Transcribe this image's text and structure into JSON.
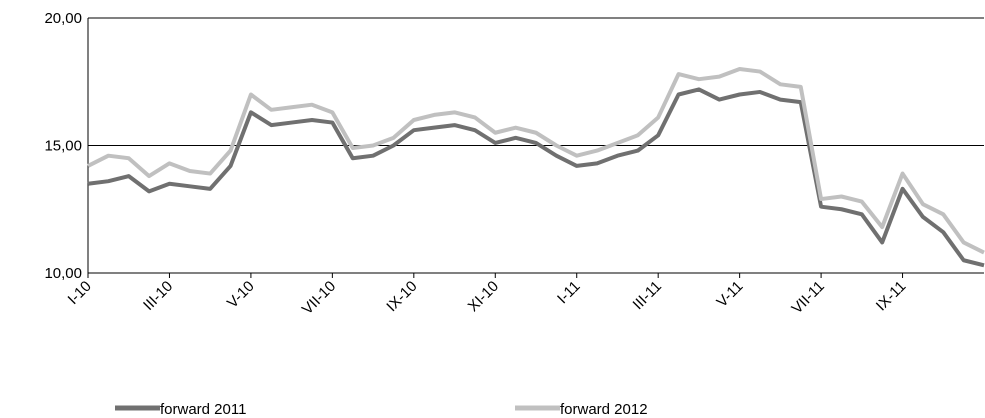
{
  "chart_data": {
    "type": "line",
    "categories": [
      "I-10",
      null,
      null,
      null,
      "III-10",
      null,
      null,
      null,
      "V-10",
      null,
      null,
      null,
      "VII-10",
      null,
      null,
      null,
      "IX-10",
      null,
      null,
      null,
      "XI-10",
      null,
      null,
      null,
      "I-11",
      null,
      null,
      null,
      "III-11",
      null,
      null,
      null,
      "V-11",
      null,
      null,
      null,
      "VII-11",
      null,
      null,
      null,
      "IX-11",
      null,
      null,
      null,
      null
    ],
    "series": [
      {
        "name": "forward 2011",
        "color": "#707070",
        "values": [
          13.5,
          13.6,
          13.8,
          13.2,
          13.5,
          13.4,
          13.3,
          14.2,
          16.3,
          15.8,
          15.9,
          16.0,
          15.9,
          14.5,
          14.6,
          15.0,
          15.6,
          15.7,
          15.8,
          15.6,
          15.1,
          15.3,
          15.1,
          14.6,
          14.2,
          14.3,
          14.6,
          14.8,
          15.4,
          17.0,
          17.2,
          16.8,
          17.0,
          17.1,
          16.8,
          16.7,
          12.6,
          12.5,
          12.3,
          11.2,
          13.3,
          12.2,
          11.6,
          10.5,
          10.3
        ]
      },
      {
        "name": "forward 2012",
        "color": "#c0c0c0",
        "values": [
          14.2,
          14.6,
          14.5,
          13.8,
          14.3,
          14.0,
          13.9,
          14.8,
          17.0,
          16.4,
          16.5,
          16.6,
          16.3,
          14.9,
          15.0,
          15.3,
          16.0,
          16.2,
          16.3,
          16.1,
          15.5,
          15.7,
          15.5,
          15.0,
          14.6,
          14.8,
          15.1,
          15.4,
          16.1,
          17.8,
          17.6,
          17.7,
          18.0,
          17.9,
          17.4,
          17.3,
          12.9,
          13.0,
          12.8,
          11.8,
          13.9,
          12.7,
          12.3,
          11.2,
          10.8
        ]
      }
    ],
    "ylim": [
      10,
      20
    ],
    "yticks": [
      {
        "value": 10,
        "label": "10,00"
      },
      {
        "value": 15,
        "label": "15,00"
      },
      {
        "value": 20,
        "label": "20,00"
      }
    ],
    "grid": true,
    "legend": "bottom"
  }
}
